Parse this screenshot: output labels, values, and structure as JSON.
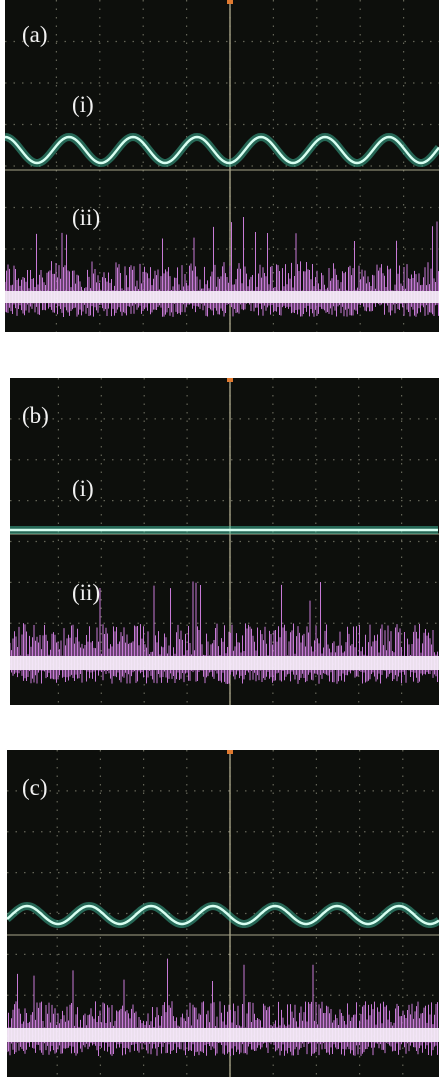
{
  "panels": [
    {
      "label": "(a)",
      "traces": [
        "(i)",
        "(ii)"
      ]
    },
    {
      "label": "(b)",
      "traces": [
        "(i)",
        "(ii)"
      ]
    },
    {
      "label": "(c)"
    }
  ]
}
